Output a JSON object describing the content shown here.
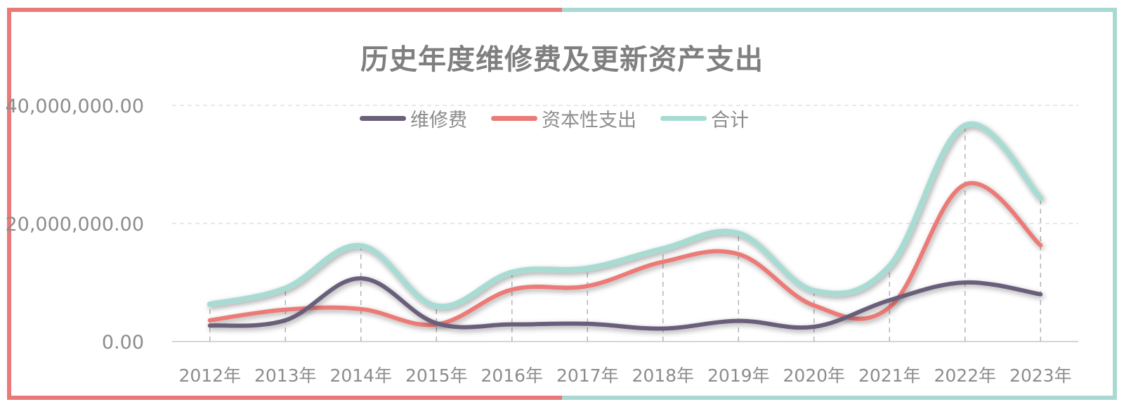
{
  "title": "历史年度维修费及更新资产支出",
  "colors": {
    "border_left": "#e97a7a",
    "border_right": "#a9d9d2",
    "grid": "#d9d9d9",
    "axis_text": "#8c8c8c",
    "title": "#7f7f7f"
  },
  "chart_data": {
    "type": "line",
    "title": "历史年度维修费及更新资产支出",
    "categories": [
      "2012年",
      "2013年",
      "2014年",
      "2015年",
      "2016年",
      "2017年",
      "2018年",
      "2019年",
      "2020年",
      "2021年",
      "2022年",
      "2023年"
    ],
    "series": [
      {
        "name": "维修费",
        "color": "#6b5f7a",
        "values": [
          2700000,
          3600000,
          10700000,
          3100000,
          2900000,
          3000000,
          2200000,
          3500000,
          2500000,
          7000000,
          10000000,
          8000000
        ]
      },
      {
        "name": "资本性支出",
        "color": "#ec7a76",
        "values": [
          3600000,
          5400000,
          5500000,
          2900000,
          8800000,
          9400000,
          13500000,
          14800000,
          6100000,
          5800000,
          26600000,
          16300000
        ]
      },
      {
        "name": "合计",
        "color": "#a8dcd3",
        "values": [
          6300000,
          9000000,
          16200000,
          6000000,
          11700000,
          12400000,
          15700000,
          18300000,
          8600000,
          12800000,
          36600000,
          24300000
        ]
      }
    ],
    "y_ticks": [
      "0.00",
      "20,000,000.00",
      "40,000,000.00"
    ],
    "ylim": [
      0,
      40000000
    ],
    "grid": true,
    "legend_position": "top"
  }
}
